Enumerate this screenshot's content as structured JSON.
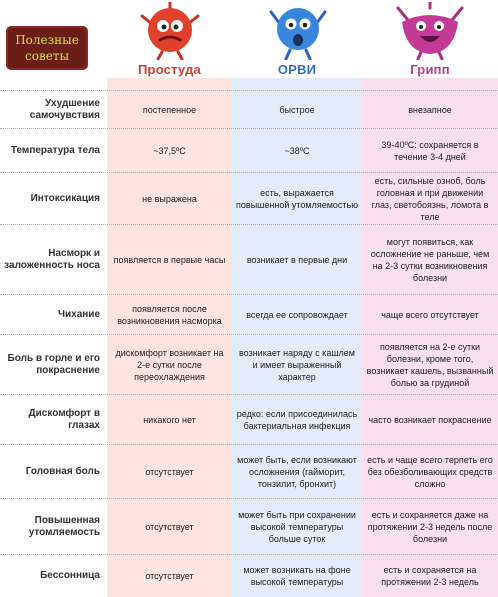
{
  "badge": {
    "line1": "Полезные",
    "line2": "советы"
  },
  "columns": {
    "cold": {
      "title": "Простуда",
      "color": "#d13b2b"
    },
    "orvi": {
      "title": "ОРВИ",
      "color": "#2f6fc8"
    },
    "flu": {
      "title": "Грипп",
      "color": "#c23a8f"
    }
  },
  "mascots": {
    "cold": "red-virus-mascot-icon",
    "orvi": "blue-virus-mascot-icon",
    "flu": "pink-virus-mascot-icon"
  },
  "rows": [
    {
      "label": "Ухудшение самочувствия",
      "cold": "постепенное",
      "orvi": "быстрое",
      "flu": "внезапное"
    },
    {
      "label": "Температура тела",
      "cold": "~37,5ºС",
      "orvi": "~38ºС",
      "flu": "39-40ºС: сохраняется в течение 3-4 дней"
    },
    {
      "label": "Интоксикация",
      "cold": "не выражена",
      "orvi": "есть, выражается повышенной утомляемостью",
      "flu": "есть, сильные озноб, боль головная и при движении глаз, светобоязнь, ломота в теле"
    },
    {
      "label": "Насморк и заложенность носа",
      "cold": "появляется в первые часы",
      "orvi": "возникает в первые дни",
      "flu": "могут появиться, как осложнение не раньше, чем на 2-3 сутки возникновения болезни"
    },
    {
      "label": "Чихание",
      "cold": "появляется после возникновения насморка",
      "orvi": "всегда ее сопровождает",
      "flu": "чаще всего отсутствует"
    },
    {
      "label": "Боль в горле и его покраснение",
      "cold": "дискомфорт возникает на 2-е сутки после переохлаждения",
      "orvi": "возникает наряду с кашлем и имеет выраженный характер",
      "flu": "появляется на 2-е сутки болезни, кроме того, возникает кашель, вызванный болью за грудиной"
    },
    {
      "label": "Дискомфорт в глазах",
      "cold": "никакого нет",
      "orvi": "редко: если присоединилась бактериальная инфекция",
      "flu": "часто возникает покраснение"
    },
    {
      "label": "Головная боль",
      "cold": "отсутствует",
      "orvi": "может быть, если возникают осложнения (гайморит, тонзилит, бронхит)",
      "flu": "есть и чаще всего терпеть его без обезболивающих средств сложно"
    },
    {
      "label": "Повышенная утомляемость",
      "cold": "отсутствует",
      "orvi": "может быть при сохранении высокой температуры больше суток",
      "flu": "есть и сохраняется даже на протяжении 2-3 недель после болезни"
    },
    {
      "label": "Бессонница",
      "cold": "отсутствует",
      "orvi": "может возникать на фоне высокой температуры",
      "flu": "есть и сохраняется на протяжении 2-3 недель"
    }
  ]
}
